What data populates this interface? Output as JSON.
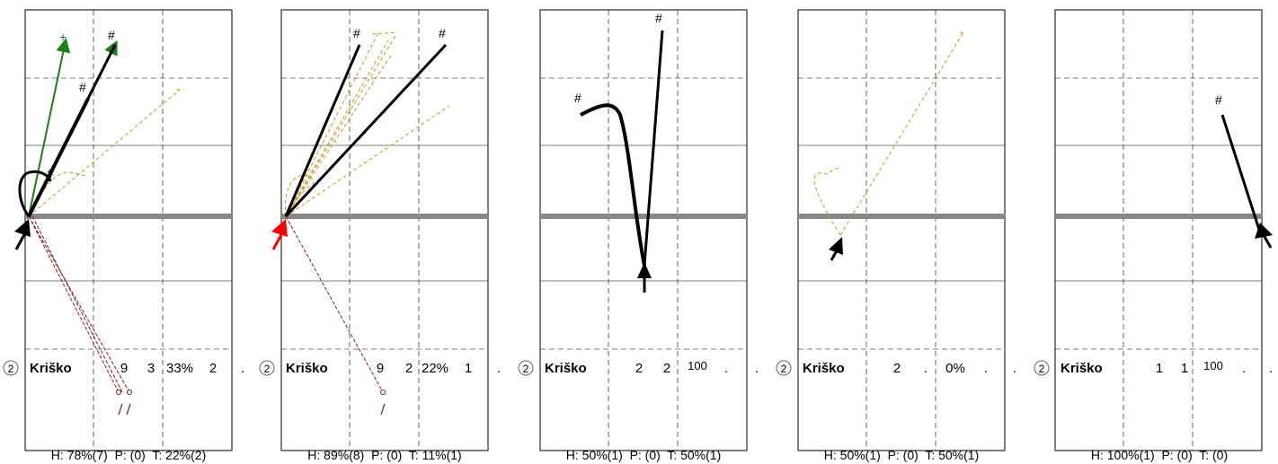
{
  "colors": {
    "axis_gray": "#888888",
    "line_black": "#000000",
    "green": "#1a7f1a",
    "gold": "#c8961e",
    "maroon": "#8b1a1a",
    "arrow_red": "#ff0000"
  },
  "panels": [
    {
      "circle_label": "2",
      "player_name": "Kriško",
      "stats": [
        "9",
        "3",
        "33%",
        "2",
        "."
      ],
      "footer": "H: 78%(7)  P: (0)  T: 22%(2)",
      "arrow_color": "black"
    },
    {
      "circle_label": "2",
      "player_name": "Kriško",
      "stats": [
        "9",
        "2",
        "22%",
        "1",
        "."
      ],
      "footer": "H: 89%(8)  P: (0)  T: 11%(1)",
      "arrow_color": "red"
    },
    {
      "circle_label": "2",
      "player_name": "Kriško",
      "stats": [
        "2",
        "2",
        "100",
        ".",
        "."
      ],
      "footer": "H: 50%(1)  P: (0)  T: 50%(1)",
      "arrow_color": "black"
    },
    {
      "circle_label": "2",
      "player_name": "Kriško",
      "stats": [
        "2",
        ".",
        "0%",
        ".",
        "."
      ],
      "footer": "H: 50%(1)  P: (0)  T: 50%(1)",
      "arrow_color": "black"
    },
    {
      "circle_label": "2",
      "player_name": "Kriško",
      "stats": [
        "1",
        "1",
        "100",
        ".",
        "."
      ],
      "footer": "H: 100%(1)  P: (0)  T: (0)",
      "arrow_color": "black"
    }
  ],
  "markers": {
    "hash": "#",
    "plus": "+"
  }
}
